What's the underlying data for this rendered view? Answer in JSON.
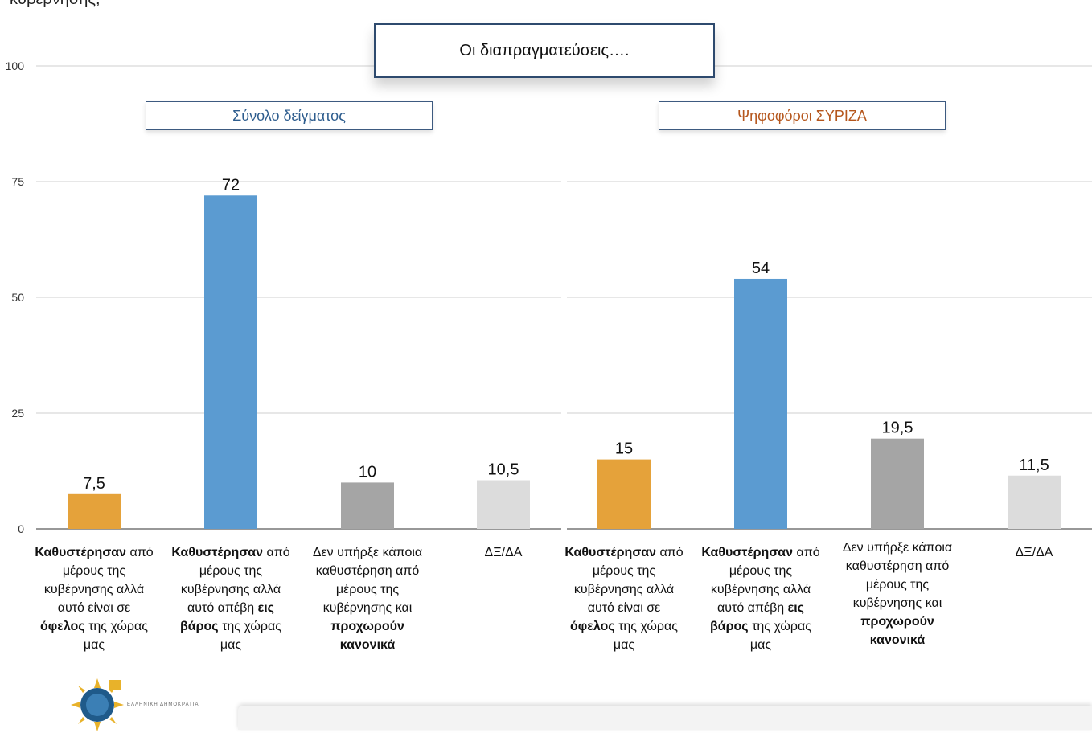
{
  "question_tail": "κυβέρνησης;",
  "banner_title": "Οι διαπραγματεύσεις….",
  "chart_data": [
    {
      "type": "bar",
      "title": "Σύνολο δείγματος",
      "ylim": [
        0,
        100
      ],
      "yticks": [
        0,
        25,
        50,
        75,
        100
      ],
      "grid": true,
      "categories": [
        "Καθυστέρησαν από μέρους της κυβέρνησης αλλά αυτό είναι σε όφελος της χώρας μας",
        "Καθυστέρησαν από μέρους της κυβέρνησης αλλά αυτό απέβη εις βάρος της χώρας μας",
        "Δεν υπήρξε κάποια καθυστέρηση από μέρους της κυβέρνησης και προχωρούν κανονικά",
        "ΔΞ/ΔΑ"
      ],
      "values": [
        7.5,
        72,
        10,
        10.5
      ],
      "value_labels": [
        "7,5",
        "72",
        "10",
        "10,5"
      ],
      "colors": [
        "#e5a23a",
        "#5b9bd1",
        "#a5a5a5",
        "#dcdcdc"
      ]
    },
    {
      "type": "bar",
      "title": "Ψηφοφόροι ΣΥΡΙΖΑ",
      "ylim": [
        0,
        100
      ],
      "yticks": [
        0,
        25,
        50,
        75,
        100
      ],
      "grid": true,
      "categories": [
        "Καθυστέρησαν από μέρους της κυβέρνησης αλλά αυτό είναι σε όφελος της χώρας μας",
        "Καθυστέρησαν από μέρους της κυβέρνησης αλλά αυτό απέβη εις βάρος της χώρας μας",
        "Δεν υπήρξε κάποια καθυστέρηση από μέρους της κυβέρνησης και προχωρούν κανονικά",
        "ΔΞ/ΔΑ"
      ],
      "values": [
        15,
        54,
        19.5,
        11.5
      ],
      "value_labels": [
        "15",
        "54",
        "19,5",
        "11,5"
      ],
      "colors": [
        "#e5a23a",
        "#5b9bd1",
        "#a5a5a5",
        "#dcdcdc"
      ]
    }
  ],
  "category_labels": {
    "c1": {
      "b1": "Καθυστέρησαν",
      "t1": "από μέρους της κυβέρνησης αλλά αυτό είναι σε",
      "b2": "όφελος",
      "t2": "της χώρας μας"
    },
    "c2": {
      "b1": "Καθυστέρησαν",
      "t1": "από μέρους της κυβέρνησης αλλά αυτό απέβη",
      "b2": "εις βάρος",
      "t2": "της χώρας μας"
    },
    "c3": {
      "t1": "Δεν υπήρξε κάποια καθυστέρηση από μέρους της κυβέρνησης και",
      "b2": "προχωρούν κανονικά"
    },
    "c4": {
      "t1": "ΔΞ/ΔΑ"
    }
  },
  "logo_text": "ΕΛΛΗΝΙΚΗ ΔΗΜΟΚΡΑΤΙΑ"
}
